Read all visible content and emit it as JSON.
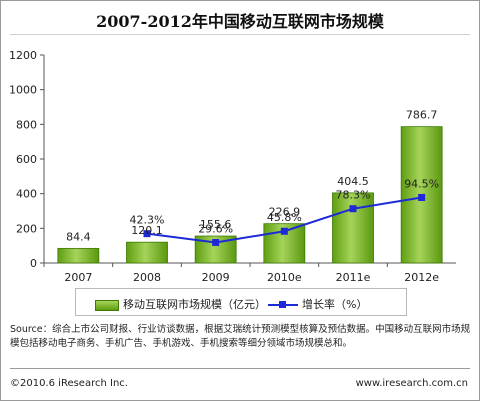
{
  "chart_data": {
    "type": "bar",
    "title": "2007-2012年中国移动互联网市场规模",
    "categories": [
      "2007",
      "2008",
      "2009",
      "2010e",
      "2011e",
      "2012e"
    ],
    "ylim": [
      0,
      1200
    ],
    "yticks": [
      0,
      200,
      400,
      600,
      800,
      1000,
      1200
    ],
    "series": [
      {
        "name": "移动互联网市场规模（亿元）",
        "type": "bar",
        "color": "#7cba25",
        "values": [
          84.4,
          120.1,
          155.6,
          226.9,
          404.5,
          786.7
        ],
        "labels": [
          "84.4",
          "120.1",
          "155.6",
          "226.9",
          "404.5",
          "786.7"
        ]
      },
      {
        "name": "增长率（%）",
        "type": "line",
        "color": "#1e2ad6",
        "values": [
          null,
          42.3,
          29.6,
          45.8,
          78.3,
          94.5
        ],
        "labels": [
          "",
          "42.3%",
          "29.6%",
          "45.8%",
          "78.3%",
          "94.5%"
        ]
      }
    ],
    "legend": {
      "position": "bottom"
    }
  },
  "source_text": "Source：综合上市公司财报、行业访谈数据，根据艾瑞统计预测模型核算及预估数据。中国移动互联网市场规模包括移动电子商务、手机广告、手机游戏、手机搜索等细分领域市场规模总和。",
  "copyright": "©2010.6 iResearch Inc.",
  "website": "www.iresearch.com.cn"
}
